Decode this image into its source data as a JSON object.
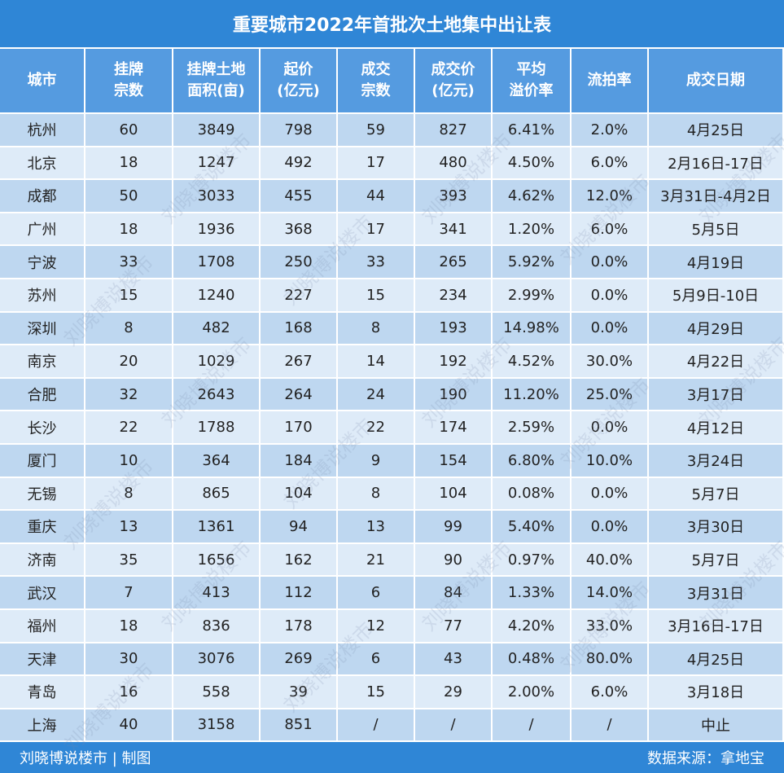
{
  "title": "重要城市2022年首批次土地集中出让表",
  "table": {
    "header": [
      [
        "城市"
      ],
      [
        "挂牌",
        "宗数"
      ],
      [
        "挂牌土地",
        "面积(亩)"
      ],
      [
        "起价",
        "(亿元)"
      ],
      [
        "成交",
        "宗数"
      ],
      [
        "成交价",
        "(亿元)"
      ],
      [
        "平均",
        "溢价率"
      ],
      [
        "流拍率"
      ],
      [
        "成交日期"
      ]
    ],
    "rows": [
      [
        "杭州",
        "60",
        "3849",
        "798",
        "59",
        "827",
        "6.41%",
        "2.0%",
        "4月25日"
      ],
      [
        "北京",
        "18",
        "1247",
        "492",
        "17",
        "480",
        "4.50%",
        "6.0%",
        "2月16日-17日"
      ],
      [
        "成都",
        "50",
        "3033",
        "455",
        "44",
        "393",
        "4.62%",
        "12.0%",
        "3月31日-4月2日"
      ],
      [
        "广州",
        "18",
        "1936",
        "368",
        "17",
        "341",
        "1.20%",
        "6.0%",
        "5月5日"
      ],
      [
        "宁波",
        "33",
        "1708",
        "250",
        "33",
        "265",
        "5.92%",
        "0.0%",
        "4月19日"
      ],
      [
        "苏州",
        "15",
        "1240",
        "227",
        "15",
        "234",
        "2.99%",
        "0.0%",
        "5月9日-10日"
      ],
      [
        "深圳",
        "8",
        "482",
        "168",
        "8",
        "193",
        "14.98%",
        "0.0%",
        "4月29日"
      ],
      [
        "南京",
        "20",
        "1029",
        "267",
        "14",
        "192",
        "4.52%",
        "30.0%",
        "4月22日"
      ],
      [
        "合肥",
        "32",
        "2643",
        "264",
        "24",
        "190",
        "11.20%",
        "25.0%",
        "3月17日"
      ],
      [
        "长沙",
        "22",
        "1788",
        "170",
        "22",
        "174",
        "2.59%",
        "0.0%",
        "4月12日"
      ],
      [
        "厦门",
        "10",
        "364",
        "184",
        "9",
        "154",
        "6.80%",
        "10.0%",
        "3月24日"
      ],
      [
        "无锡",
        "8",
        "865",
        "104",
        "8",
        "104",
        "0.08%",
        "0.0%",
        "5月7日"
      ],
      [
        "重庆",
        "13",
        "1361",
        "94",
        "13",
        "99",
        "5.40%",
        "0.0%",
        "3月30日"
      ],
      [
        "济南",
        "35",
        "1656",
        "162",
        "21",
        "90",
        "0.97%",
        "40.0%",
        "5月7日"
      ],
      [
        "武汉",
        "7",
        "413",
        "112",
        "6",
        "84",
        "1.33%",
        "14.0%",
        "3月31日"
      ],
      [
        "福州",
        "18",
        "836",
        "178",
        "12",
        "77",
        "4.20%",
        "33.0%",
        "3月16日-17日"
      ],
      [
        "天津",
        "30",
        "3076",
        "269",
        "6",
        "43",
        "0.48%",
        "80.0%",
        "4月25日"
      ],
      [
        "青岛",
        "16",
        "558",
        "39",
        "15",
        "29",
        "2.00%",
        "6.0%",
        "3月18日"
      ],
      [
        "上海",
        "40",
        "3158",
        "851",
        "/",
        "/",
        "/",
        "/",
        "中止"
      ]
    ]
  },
  "footer": {
    "left": "刘晓博说楼市 | 制图",
    "right": "数据来源：拿地宝"
  },
  "watermark": "刘晓博说楼市"
}
